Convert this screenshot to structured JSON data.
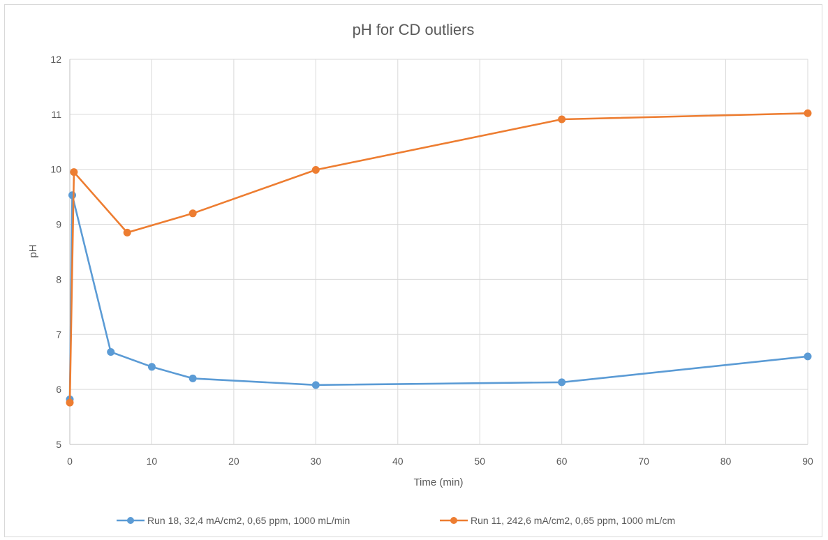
{
  "chart_data": {
    "type": "line",
    "title": "pH for CD outliers",
    "xlabel": "Time (min)",
    "ylabel": "pH",
    "xlim": [
      0,
      90
    ],
    "ylim": [
      5,
      12
    ],
    "xticks": [
      0,
      10,
      20,
      30,
      40,
      50,
      60,
      70,
      80,
      90
    ],
    "yticks": [
      5,
      6,
      7,
      8,
      9,
      10,
      11,
      12
    ],
    "grid": true,
    "legend_position": "bottom",
    "series": [
      {
        "name": "Run 18, 32,4 mA/cm2, 0,65 ppm, 1000 mL/min",
        "color": "#5b9bd5",
        "x": [
          0,
          0.3,
          5,
          10,
          15,
          30,
          60,
          90
        ],
        "y": [
          5.82,
          9.53,
          6.68,
          6.41,
          6.2,
          6.08,
          6.13,
          6.6
        ]
      },
      {
        "name": "Run 11, 242,6 mA/cm2, 0,65 ppm, 1000 mL/cm",
        "color": "#ed7d31",
        "x": [
          0,
          0.5,
          7,
          15,
          30,
          60,
          90
        ],
        "y": [
          5.76,
          9.95,
          8.85,
          9.2,
          9.99,
          10.91,
          11.02
        ]
      }
    ]
  }
}
